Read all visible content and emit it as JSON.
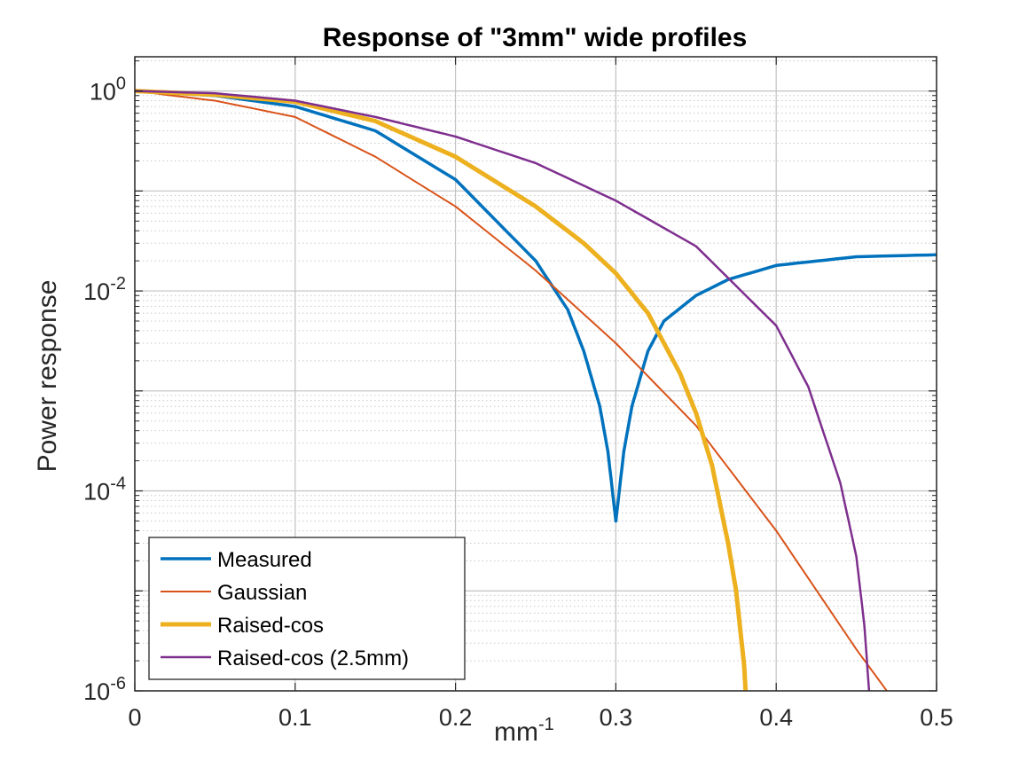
{
  "chart_data": {
    "type": "line",
    "title": "Response of \"3mm\" wide profiles",
    "xlabel": "mm",
    "xlabel_sup": "-1",
    "ylabel": "Power response",
    "xlim": [
      0,
      0.5
    ],
    "ylim": [
      1e-06,
      2.2
    ],
    "yscale": "log",
    "grid": true,
    "minor_grid": true,
    "legend_position": "bottom-left",
    "xticks": [
      {
        "value": 0,
        "label": "0"
      },
      {
        "value": 0.1,
        "label": "0.1"
      },
      {
        "value": 0.2,
        "label": "0.2"
      },
      {
        "value": 0.3,
        "label": "0.3"
      },
      {
        "value": 0.4,
        "label": "0.4"
      },
      {
        "value": 0.5,
        "label": "0.5"
      }
    ],
    "yticks": [
      {
        "value": 1,
        "base": "10",
        "exp": "0"
      },
      {
        "value": 0.01,
        "base": "10",
        "exp": "-2"
      },
      {
        "value": 0.0001,
        "base": "10",
        "exp": "-4"
      },
      {
        "value": 1e-06,
        "base": "10",
        "exp": "-6"
      }
    ],
    "series": [
      {
        "name": "Measured",
        "color": "#0072BD",
        "width": 3.5,
        "x": [
          0,
          0.05,
          0.1,
          0.15,
          0.2,
          0.25,
          0.27,
          0.28,
          0.29,
          0.295,
          0.3,
          0.305,
          0.31,
          0.32,
          0.33,
          0.35,
          0.37,
          0.4,
          0.45,
          0.5
        ],
        "y": [
          1.0,
          0.9,
          0.7,
          0.4,
          0.13,
          0.02,
          0.0065,
          0.0025,
          0.0007,
          0.00025,
          5e-05,
          0.00025,
          0.0007,
          0.0025,
          0.005,
          0.009,
          0.013,
          0.018,
          0.022,
          0.023
        ]
      },
      {
        "name": "Gaussian",
        "color": "#D95319",
        "width": 2,
        "x": [
          0,
          0.05,
          0.1,
          0.15,
          0.2,
          0.25,
          0.3,
          0.35,
          0.4,
          0.45,
          0.47
        ],
        "y": [
          1.0,
          0.8,
          0.55,
          0.22,
          0.07,
          0.016,
          0.003,
          0.00045,
          4e-05,
          2.6e-06,
          9.5e-07
        ]
      },
      {
        "name": "Raised-cos",
        "color": "#EDB120",
        "width": 5,
        "x": [
          0,
          0.05,
          0.1,
          0.15,
          0.2,
          0.25,
          0.28,
          0.3,
          0.32,
          0.34,
          0.35,
          0.36,
          0.37,
          0.375,
          0.38,
          0.381
        ],
        "y": [
          1.0,
          0.92,
          0.78,
          0.5,
          0.22,
          0.07,
          0.03,
          0.015,
          0.006,
          0.0015,
          0.0006,
          0.00018,
          3e-05,
          1e-05,
          1.8e-06,
          9.5e-07
        ]
      },
      {
        "name": "Raised-cos (2.5mm)",
        "color": "#7E2F8E",
        "width": 2.5,
        "x": [
          0,
          0.05,
          0.1,
          0.15,
          0.2,
          0.25,
          0.3,
          0.35,
          0.4,
          0.42,
          0.44,
          0.45,
          0.455,
          0.458
        ],
        "y": [
          1.0,
          0.95,
          0.8,
          0.55,
          0.35,
          0.19,
          0.08,
          0.028,
          0.0045,
          0.0011,
          0.00012,
          2.2e-05,
          4.5e-06,
          9.5e-07
        ]
      }
    ]
  }
}
